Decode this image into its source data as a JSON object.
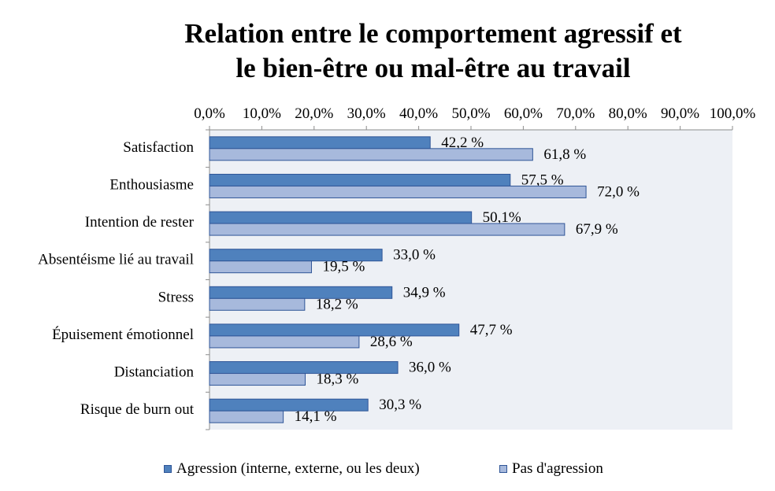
{
  "chart_data": {
    "type": "bar",
    "orientation": "horizontal",
    "title_lines": [
      "Relation entre le comportement agressif et",
      "le bien-être ou mal-être au travail"
    ],
    "categories": [
      "Satisfaction",
      "Enthousiasme",
      "Intention de rester",
      "Absentéisme lié au travail",
      "Stress",
      "Épuisement émotionnel",
      "Distanciation",
      "Risque de burn out"
    ],
    "series": [
      {
        "name": "Agression (interne, externe, ou les deux)",
        "color": "#4f81bd",
        "values": [
          42.2,
          57.5,
          50.1,
          33.0,
          34.9,
          47.7,
          36.0,
          30.3
        ],
        "labels": [
          "42,2 %",
          "57,5 %",
          "50,1%",
          "33,0 %",
          "34,9 %",
          "47,7 %",
          "36,0 %",
          "30,3 %"
        ]
      },
      {
        "name": "Pas d'agression",
        "color": "#a7b9dc",
        "values": [
          61.8,
          72.0,
          67.9,
          19.5,
          18.2,
          28.6,
          18.3,
          14.1
        ],
        "labels": [
          "61,8 %",
          "72,0 %",
          "67,9 %",
          "19,5 %",
          "18,2 %",
          "28,6 %",
          "18,3 %",
          "14,1 %"
        ]
      }
    ],
    "xlim": [
      0,
      100
    ],
    "x_ticks": [
      "0,0%",
      "10,0%",
      "20,0%",
      "30,0%",
      "40,0%",
      "50,0%",
      "60,0%",
      "70,0%",
      "80,0%",
      "90,0%",
      "100,0%"
    ],
    "x_axis_position": "top",
    "plot_background": "#edf0f5",
    "grid": false,
    "legend_position": "bottom"
  }
}
